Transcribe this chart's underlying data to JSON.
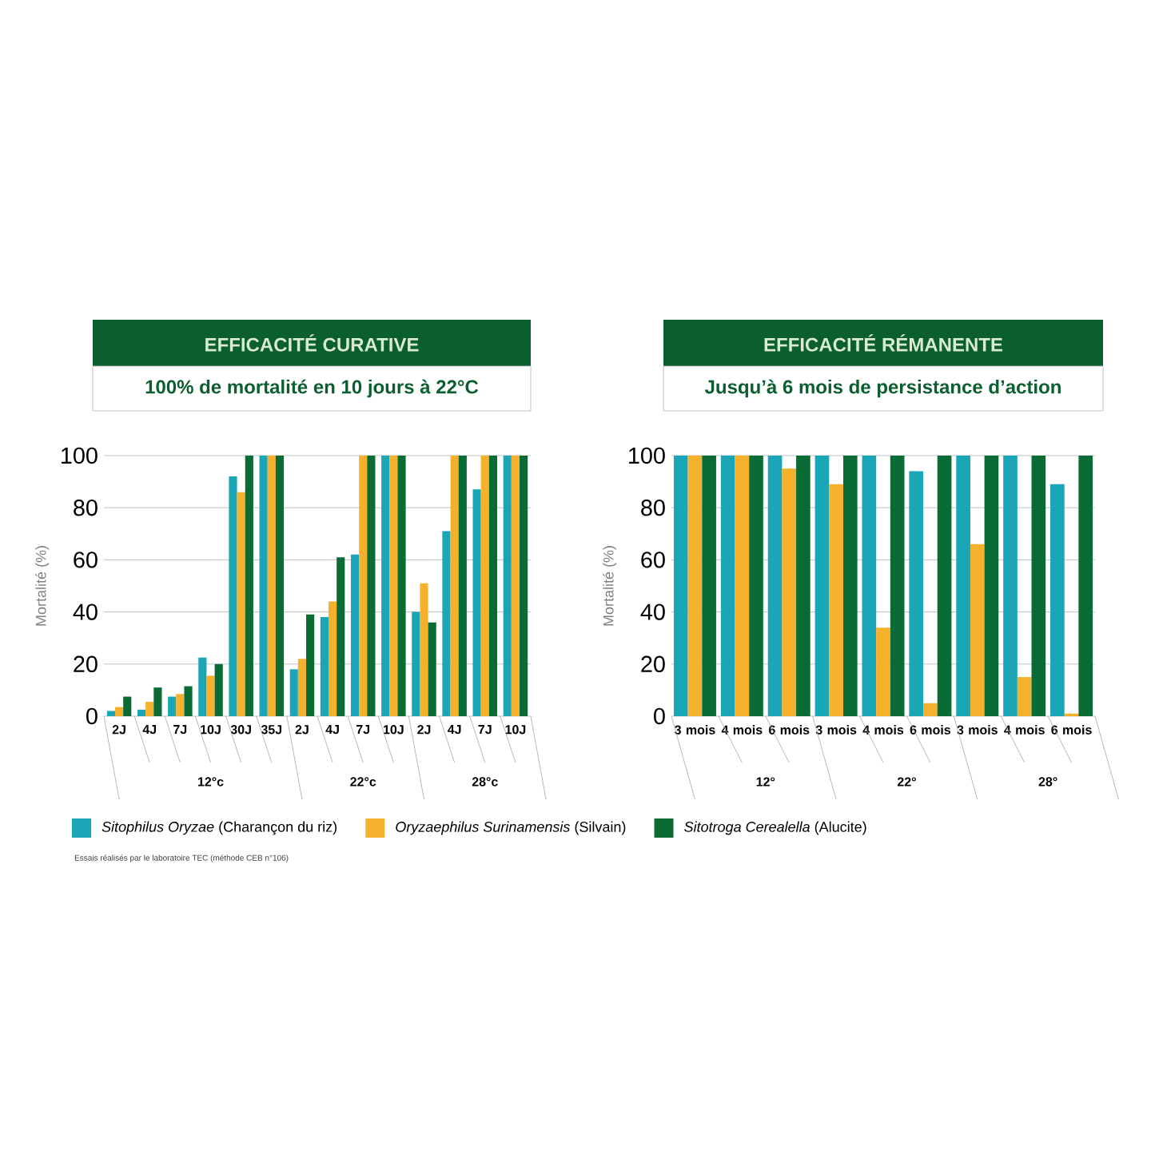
{
  "chart_data": [
    {
      "type": "bar",
      "title": "EFFICACITÉ CURATIVE",
      "subtitle": "100% de mortalité en 10 jours à 22°C",
      "ylabel": "Mortalité (%)",
      "categories": [
        "2J",
        "4J",
        "7J",
        "10J",
        "30J",
        "35J",
        "2J",
        "4J",
        "7J",
        "10J",
        "2J",
        "4J",
        "7J",
        "10J"
      ],
      "series": [
        {
          "name": "*Sitophilus Oryzae* (Charançon du riz)",
          "color": "#1aa6b7",
          "values": [
            2,
            2.5,
            7.5,
            22.5,
            92,
            100,
            18,
            38,
            62,
            100,
            40,
            71,
            87,
            100
          ]
        },
        {
          "name": "*Oryzaephilus Surinamensis* (Silvain)",
          "color": "#f6b12c",
          "values": [
            3.5,
            5.5,
            8.5,
            15.5,
            86,
            100,
            22,
            44,
            100,
            100,
            51,
            100,
            100,
            100
          ]
        },
        {
          "name": "*Sitotroga Cerealella* (Alucite)",
          "color": "#0a6b35",
          "values": [
            7.5,
            11,
            11.5,
            20,
            100,
            100,
            39,
            61,
            100,
            100,
            36,
            100,
            100,
            100
          ]
        }
      ],
      "ylim": [
        0,
        100
      ],
      "yticks": [
        0,
        20,
        40,
        60,
        80,
        100
      ],
      "grid": "y",
      "legend": "bottom",
      "annotations": [
        "12°c",
        "22°c",
        "28°c",
        "Essais réalisés par le laboratoire TEC (méthode CEB n°106)"
      ]
    },
    {
      "type": "bar",
      "title": "EFFICACITÉ RÉMANENTE",
      "subtitle": "Jusqu’à 6 mois de persistance d’action",
      "ylabel": "Mortalité (%)",
      "categories": [
        "3 mois",
        "4 mois",
        "6 mois",
        "3 mois",
        "4 mois",
        "6 mois",
        "3 mois",
        "4 mois",
        "6 mois"
      ],
      "series": [
        {
          "color": "#1aa6b7",
          "values": [
            100,
            100,
            100,
            100,
            100,
            94,
            100,
            100,
            89
          ]
        },
        {
          "color": "#f6b12c",
          "values": [
            100,
            100,
            95,
            89,
            34,
            5,
            66,
            15,
            1
          ]
        },
        {
          "color": "#0a6b35",
          "values": [
            100,
            100,
            100,
            100,
            100,
            100,
            100,
            100,
            100
          ]
        }
      ],
      "ylim": [
        0,
        100
      ],
      "yticks": [
        0,
        20,
        40,
        60,
        80,
        100
      ],
      "grid": "y",
      "annotations": [
        "12°",
        "22°",
        "28°"
      ]
    }
  ]
}
